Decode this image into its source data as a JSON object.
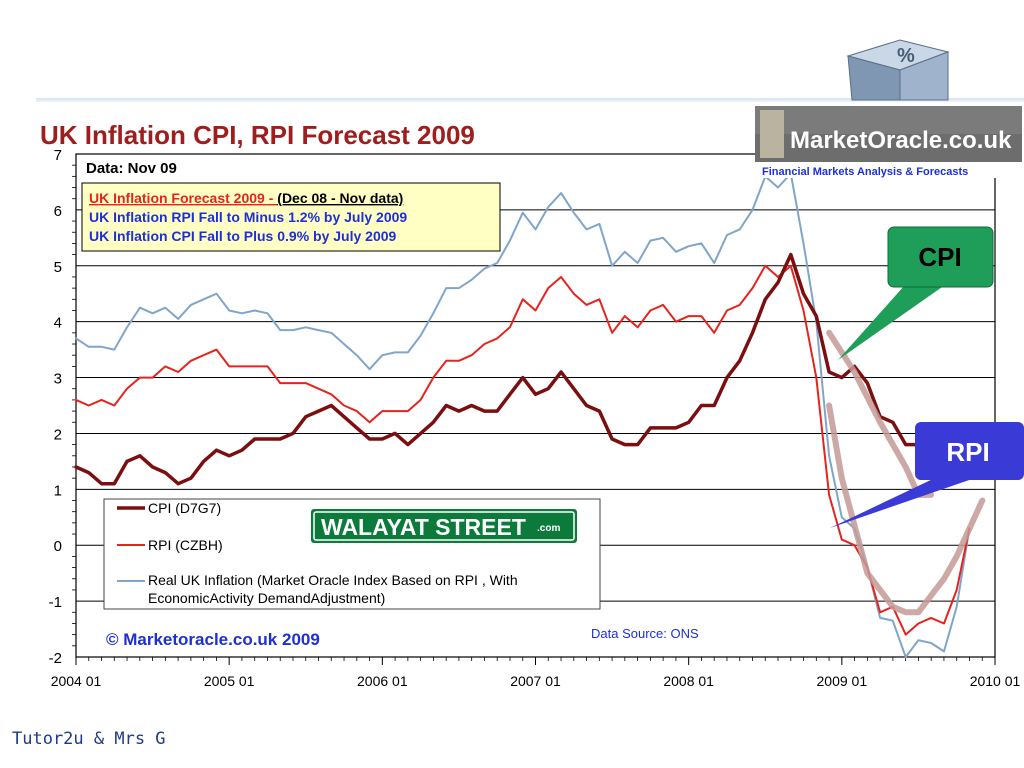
{
  "footer": "Tutor2u & Mrs G",
  "chart_data": {
    "type": "line",
    "title": "UK Inflation CPI, RPI Forecast 2009",
    "data_note": "Data:  Nov 09",
    "ylim": [
      -2,
      7
    ],
    "yticks": [
      -2,
      -1,
      0,
      1,
      2,
      3,
      4,
      5,
      6,
      7
    ],
    "xlim": [
      2004.0,
      2010.0
    ],
    "xticks": [
      {
        "x": 2004.0,
        "label": "2004 01"
      },
      {
        "x": 2005.0,
        "label": "2005 01"
      },
      {
        "x": 2006.0,
        "label": "2006 01"
      },
      {
        "x": 2007.0,
        "label": "2007 01"
      },
      {
        "x": 2008.0,
        "label": "2008 01"
      },
      {
        "x": 2009.0,
        "label": "2009 01"
      },
      {
        "x": 2010.0,
        "label": "2010 01"
      }
    ],
    "grid": "horizontal",
    "series": [
      {
        "name": "CPI (D7G7)",
        "color": "#7b0f0f",
        "width": 3.5,
        "x": [
          2004.0,
          2004.083,
          2004.167,
          2004.25,
          2004.333,
          2004.417,
          2004.5,
          2004.583,
          2004.667,
          2004.75,
          2004.833,
          2004.917,
          2005.0,
          2005.083,
          2005.167,
          2005.25,
          2005.333,
          2005.417,
          2005.5,
          2005.583,
          2005.667,
          2005.75,
          2005.833,
          2005.917,
          2006.0,
          2006.083,
          2006.167,
          2006.25,
          2006.333,
          2006.417,
          2006.5,
          2006.583,
          2006.667,
          2006.75,
          2006.833,
          2006.917,
          2007.0,
          2007.083,
          2007.167,
          2007.25,
          2007.333,
          2007.417,
          2007.5,
          2007.583,
          2007.667,
          2007.75,
          2007.833,
          2007.917,
          2008.0,
          2008.083,
          2008.167,
          2008.25,
          2008.333,
          2008.417,
          2008.5,
          2008.583,
          2008.667,
          2008.75,
          2008.833,
          2008.917,
          2009.0,
          2009.083,
          2009.167,
          2009.25,
          2009.333,
          2009.417,
          2009.5,
          2009.583,
          2009.667
        ],
        "y": [
          1.4,
          1.3,
          1.1,
          1.1,
          1.5,
          1.6,
          1.4,
          1.3,
          1.1,
          1.2,
          1.5,
          1.7,
          1.6,
          1.7,
          1.9,
          1.9,
          1.9,
          2.0,
          2.3,
          2.4,
          2.5,
          2.3,
          2.1,
          1.9,
          1.9,
          2.0,
          1.8,
          2.0,
          2.2,
          2.5,
          2.4,
          2.5,
          2.4,
          2.4,
          2.7,
          3.0,
          2.7,
          2.8,
          3.1,
          2.8,
          2.5,
          2.4,
          1.9,
          1.8,
          1.8,
          2.1,
          2.1,
          2.1,
          2.2,
          2.5,
          2.5,
          3.0,
          3.3,
          3.8,
          4.4,
          4.7,
          5.2,
          4.5,
          4.1,
          3.1,
          3.0,
          3.2,
          2.9,
          2.3,
          2.2,
          1.8,
          1.8,
          1.6,
          1.1
        ]
      },
      {
        "name": "RPI (CZBH)",
        "color": "#e8231e",
        "width": 2,
        "x": [
          2004.0,
          2004.083,
          2004.167,
          2004.25,
          2004.333,
          2004.417,
          2004.5,
          2004.583,
          2004.667,
          2004.75,
          2004.833,
          2004.917,
          2005.0,
          2005.083,
          2005.167,
          2005.25,
          2005.333,
          2005.417,
          2005.5,
          2005.583,
          2005.667,
          2005.75,
          2005.833,
          2005.917,
          2006.0,
          2006.083,
          2006.167,
          2006.25,
          2006.333,
          2006.417,
          2006.5,
          2006.583,
          2006.667,
          2006.75,
          2006.833,
          2006.917,
          2007.0,
          2007.083,
          2007.167,
          2007.25,
          2007.333,
          2007.417,
          2007.5,
          2007.583,
          2007.667,
          2007.75,
          2007.833,
          2007.917,
          2008.0,
          2008.083,
          2008.167,
          2008.25,
          2008.333,
          2008.417,
          2008.5,
          2008.583,
          2008.667,
          2008.75,
          2008.833,
          2008.917,
          2009.0,
          2009.083,
          2009.167,
          2009.25,
          2009.333,
          2009.417,
          2009.5,
          2009.583,
          2009.667,
          2009.75,
          2009.833
        ],
        "y": [
          2.6,
          2.5,
          2.6,
          2.5,
          2.8,
          3.0,
          3.0,
          3.2,
          3.1,
          3.3,
          3.4,
          3.5,
          3.2,
          3.2,
          3.2,
          3.2,
          2.9,
          2.9,
          2.9,
          2.8,
          2.7,
          2.5,
          2.4,
          2.2,
          2.4,
          2.4,
          2.4,
          2.6,
          3.0,
          3.3,
          3.3,
          3.4,
          3.6,
          3.7,
          3.9,
          4.4,
          4.2,
          4.6,
          4.8,
          4.5,
          4.3,
          4.4,
          3.8,
          4.1,
          3.9,
          4.2,
          4.3,
          4.0,
          4.1,
          4.1,
          3.8,
          4.2,
          4.3,
          4.6,
          5.0,
          4.8,
          5.0,
          4.2,
          3.0,
          0.9,
          0.1,
          0.0,
          -0.4,
          -1.2,
          -1.1,
          -1.6,
          -1.4,
          -1.3,
          -1.4,
          -0.8,
          0.3
        ]
      },
      {
        "name": "Real UK Inflation (Market Oracle Index Based on RPI , With EconomicActivity DemandAdjustment)",
        "color": "#7fa6c9",
        "width": 2,
        "x": [
          2004.0,
          2004.083,
          2004.167,
          2004.25,
          2004.333,
          2004.417,
          2004.5,
          2004.583,
          2004.667,
          2004.75,
          2004.833,
          2004.917,
          2005.0,
          2005.083,
          2005.167,
          2005.25,
          2005.333,
          2005.417,
          2005.5,
          2005.583,
          2005.667,
          2005.75,
          2005.833,
          2005.917,
          2006.0,
          2006.083,
          2006.167,
          2006.25,
          2006.333,
          2006.417,
          2006.5,
          2006.583,
          2006.667,
          2006.75,
          2006.833,
          2006.917,
          2007.0,
          2007.083,
          2007.167,
          2007.25,
          2007.333,
          2007.417,
          2007.5,
          2007.583,
          2007.667,
          2007.75,
          2007.833,
          2007.917,
          2008.0,
          2008.083,
          2008.167,
          2008.25,
          2008.333,
          2008.417,
          2008.5,
          2008.583,
          2008.667,
          2008.75,
          2008.833,
          2008.917,
          2009.0,
          2009.083,
          2009.167,
          2009.25,
          2009.333,
          2009.417,
          2009.5,
          2009.583,
          2009.667,
          2009.75,
          2009.833
        ],
        "y": [
          3.7,
          3.55,
          3.55,
          3.5,
          3.9,
          4.25,
          4.15,
          4.25,
          4.05,
          4.3,
          4.4,
          4.5,
          4.2,
          4.15,
          4.2,
          4.15,
          3.85,
          3.85,
          3.9,
          3.85,
          3.8,
          3.6,
          3.4,
          3.15,
          3.4,
          3.45,
          3.45,
          3.75,
          4.15,
          4.6,
          4.6,
          4.75,
          4.95,
          5.05,
          5.45,
          5.95,
          5.65,
          6.05,
          6.3,
          5.95,
          5.65,
          5.75,
          5.0,
          5.25,
          5.05,
          5.45,
          5.5,
          5.25,
          5.35,
          5.4,
          5.05,
          5.55,
          5.65,
          6.0,
          6.6,
          6.4,
          6.65,
          5.4,
          4.0,
          1.6,
          0.5,
          0.3,
          -0.4,
          -1.3,
          -1.35,
          -2.0,
          -1.7,
          -1.75,
          -1.9,
          -1.1,
          0.3
        ]
      },
      {
        "name": "",
        "color": "#c49a96",
        "width": 6,
        "forecast": true,
        "x": [
          2008.917,
          2009.083,
          2009.25,
          2009.417,
          2009.5,
          2009.583
        ],
        "y": [
          3.8,
          3.1,
          2.2,
          1.4,
          0.9,
          0.9
        ]
      },
      {
        "name": "",
        "color": "#c49a96",
        "width": 6,
        "forecast": true,
        "x": [
          2008.917,
          2009.0,
          2009.167,
          2009.333,
          2009.417,
          2009.5,
          2009.583,
          2009.667,
          2009.75,
          2009.917
        ],
        "y": [
          2.5,
          1.2,
          -0.5,
          -1.1,
          -1.2,
          -1.2,
          -0.9,
          -0.6,
          -0.2,
          0.8
        ]
      }
    ],
    "info_box": {
      "line1_red": "UK Inflation Forecast  2009 - ",
      "line1_black": "(Dec 08 - Nov data)",
      "line2": "UK Inflation RPI Fall to  Minus 1.2% by July 2009",
      "line3": "UK Inflation CPI Fall to Plus 0.9% by July 2009"
    },
    "legend_placement": "bottom-left",
    "brand_sign": "WALAYAT STREET",
    "brand_sign_suffix": ".com",
    "copyright": "© Marketoracle.co.uk  2009",
    "source": "Data Source: ONS",
    "logo_name": "MarketOracle.co.uk",
    "logo_tagline": "Financial Markets Analysis & Forecasts",
    "callouts": [
      {
        "label": "CPI",
        "color": "#1f9e5a",
        "text_color": "#000000"
      },
      {
        "label": "RPI",
        "color": "#3a3ad6",
        "text_color": "#ffffff"
      }
    ]
  }
}
